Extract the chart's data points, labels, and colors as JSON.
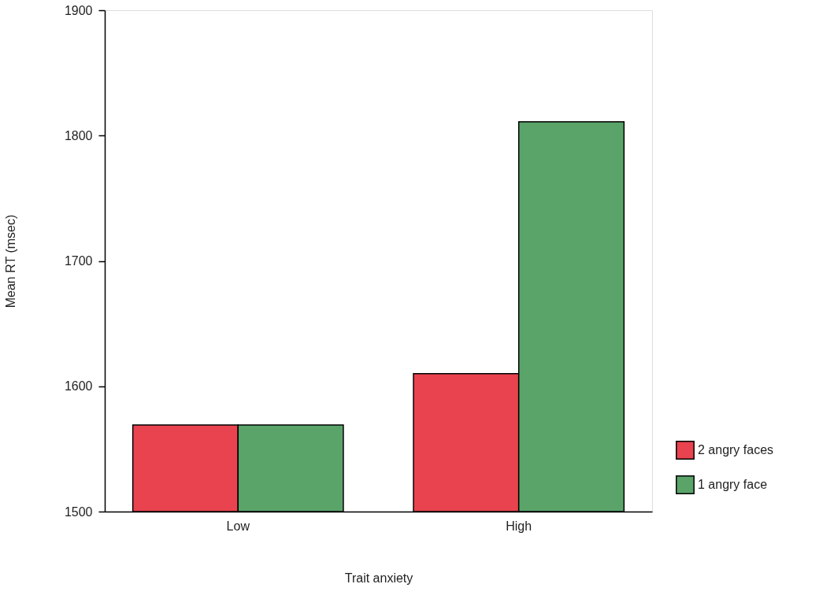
{
  "chart_data": {
    "type": "bar",
    "xlabel": "Trait anxiety",
    "ylabel": "Mean RT (msec)",
    "categories": [
      "Low",
      "High"
    ],
    "series": [
      {
        "name": "2 angry faces",
        "color": "#e8434f",
        "values": [
          1569,
          1610
        ]
      },
      {
        "name": "1 angry face",
        "color": "#5aa46a",
        "values": [
          1569,
          1811
        ]
      }
    ],
    "ylim": [
      1500,
      1900
    ],
    "yticks": [
      1500,
      1600,
      1700,
      1800,
      1900
    ],
    "grid": false,
    "legend": "bottom right"
  }
}
